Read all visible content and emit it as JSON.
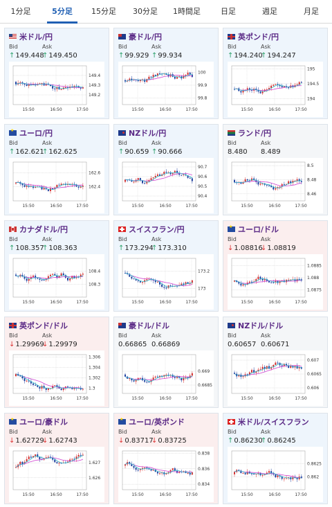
{
  "tabs": [
    {
      "label": "1分足",
      "active": false
    },
    {
      "label": "5分足",
      "active": true
    },
    {
      "label": "15分足",
      "active": false
    },
    {
      "label": "30分足",
      "active": false
    },
    {
      "label": "1時間足",
      "active": false
    },
    {
      "label": "日足",
      "active": false
    },
    {
      "label": "週足",
      "active": false
    },
    {
      "label": "月足",
      "active": false
    }
  ],
  "colors": {
    "up_arrow": "#2aa06a",
    "down_arrow": "#d33333",
    "candle_up": "#d32f2f",
    "candle_down": "#1f3f9f",
    "ma_pink": "#d040d0",
    "ma_cyan": "#2fb8c8",
    "pair_name": "#5b2a86",
    "accent": "#1f5fb3"
  },
  "cards": [
    {
      "pair": "米ドル/円",
      "flag": "us",
      "tone": "up",
      "bid_label": "Bid",
      "ask_label": "Ask",
      "bid": "149.448",
      "ask": "149.450",
      "direction": "up",
      "chart": {
        "x_ticks": [
          "15:50",
          "16:50",
          "17:50"
        ],
        "y_ticks": [
          "149.4",
          "149.3",
          "149.2"
        ],
        "y_range": [
          149.1,
          149.5
        ]
      }
    },
    {
      "pair": "豪ドル/円",
      "flag": "au",
      "tone": "up",
      "bid_label": "Bid",
      "ask_label": "Ask",
      "bid": "99.929",
      "ask": "99.934",
      "direction": "up",
      "chart": {
        "x_ticks": [
          "15:50",
          "16:50",
          "17:50"
        ],
        "y_ticks": [
          "100",
          "99.9",
          "99.8"
        ],
        "y_range": [
          99.75,
          100.05
        ]
      }
    },
    {
      "pair": "英ポンド/円",
      "flag": "gb",
      "tone": "up",
      "bid_label": "Bid",
      "ask_label": "Ask",
      "bid": "194.240",
      "ask": "194.247",
      "direction": "up",
      "chart": {
        "x_ticks": [
          "15:50",
          "16:50",
          "17:50"
        ],
        "y_ticks": [
          "195",
          "194.5",
          "194"
        ],
        "y_range": [
          193.8,
          195.1
        ]
      }
    },
    {
      "pair": "ユーロ/円",
      "flag": "eu",
      "tone": "up",
      "bid_label": "Bid",
      "ask_label": "Ask",
      "bid": "162.621",
      "ask": "162.625",
      "direction": "up",
      "chart": {
        "x_ticks": [
          "15:50",
          "16:50",
          "17:50"
        ],
        "y_ticks": [
          "162.6",
          "162.4"
        ],
        "y_range": [
          162.2,
          162.75
        ]
      }
    },
    {
      "pair": "NZドル/円",
      "flag": "nz",
      "tone": "up",
      "bid_label": "Bid",
      "ask_label": "Ask",
      "bid": "90.659",
      "ask": "90.666",
      "direction": "up",
      "chart": {
        "x_ticks": [
          "15:50",
          "16:50",
          "17:50"
        ],
        "y_ticks": [
          "90.7",
          "90.6",
          "90.5",
          "90.4"
        ],
        "y_range": [
          90.35,
          90.75
        ]
      }
    },
    {
      "pair": "ランド/円",
      "flag": "za",
      "tone": "neutral",
      "bid_label": "Bid",
      "ask_label": "Ask",
      "bid": "8.480",
      "ask": "8.489",
      "direction": "none",
      "chart": {
        "x_ticks": [
          "15:50",
          "16:50",
          "17:50"
        ],
        "y_ticks": [
          "8.5",
          "8.48",
          "8.46"
        ],
        "y_range": [
          8.45,
          8.505
        ]
      }
    },
    {
      "pair": "カナダドル/円",
      "flag": "ca",
      "tone": "up",
      "bid_label": "Bid",
      "ask_label": "Ask",
      "bid": "108.357",
      "ask": "108.363",
      "direction": "up",
      "chart": {
        "x_ticks": [
          "15:50",
          "16:50",
          "17:50"
        ],
        "y_ticks": [
          "108.4",
          "108.3"
        ],
        "y_range": [
          108.2,
          108.5
        ]
      }
    },
    {
      "pair": "スイスフラン/円",
      "flag": "ch",
      "tone": "up",
      "bid_label": "Bid",
      "ask_label": "Ask",
      "bid": "173.294",
      "ask": "173.310",
      "direction": "up",
      "chart": {
        "x_ticks": [
          "15:50",
          "16:50",
          "17:50"
        ],
        "y_ticks": [
          "173.2",
          "173"
        ],
        "y_range": [
          172.9,
          173.35
        ]
      }
    },
    {
      "pair": "ユーロ/ドル",
      "flag": "eu",
      "tone": "down",
      "bid_label": "Bid",
      "ask_label": "Ask",
      "bid": "1.08816",
      "ask": "1.08819",
      "direction": "down",
      "chart": {
        "x_ticks": [
          "15:50",
          "16:50",
          "17:50"
        ],
        "y_ticks": [
          "1.0885",
          "1.088",
          "1.0875"
        ],
        "y_range": [
          1.0872,
          1.0888
        ]
      }
    },
    {
      "pair": "英ポンド/ドル",
      "flag": "gb",
      "tone": "down",
      "bid_label": "Bid",
      "ask_label": "Ask",
      "bid": "1.29969",
      "ask": "1.29979",
      "direction": "down",
      "chart": {
        "x_ticks": [
          "15:50",
          "16:50",
          "17:50"
        ],
        "y_ticks": [
          "1.306",
          "1.304",
          "1.302",
          "1.3"
        ],
        "y_range": [
          1.299,
          1.3065
        ]
      }
    },
    {
      "pair": "豪ドル/ドル",
      "flag": "au",
      "tone": "neutral",
      "bid_label": "Bid",
      "ask_label": "Ask",
      "bid": "0.66865",
      "ask": "0.66869",
      "direction": "none",
      "chart": {
        "x_ticks": [
          "15:50",
          "16:50",
          "17:50"
        ],
        "y_ticks": [
          "0.669",
          "0.6685"
        ],
        "y_range": [
          0.6682,
          0.6696
        ]
      }
    },
    {
      "pair": "NZドル/ドル",
      "flag": "nz",
      "tone": "neutral",
      "bid_label": "Bid",
      "ask_label": "Ask",
      "bid": "0.60657",
      "ask": "0.60671",
      "direction": "none",
      "chart": {
        "x_ticks": [
          "15:50",
          "16:50",
          "17:50"
        ],
        "y_ticks": [
          "0.607",
          "0.6065",
          "0.606"
        ],
        "y_range": [
          0.6058,
          0.6072
        ]
      }
    },
    {
      "pair": "ユーロ/豪ドル",
      "flag": "eu",
      "tone": "down",
      "bid_label": "Bid",
      "ask_label": "Ask",
      "bid": "1.62729",
      "ask": "1.62743",
      "direction": "down",
      "chart": {
        "x_ticks": [
          "15:50",
          "16:50",
          "17:50"
        ],
        "y_ticks": [
          "1.627",
          "1.626"
        ],
        "y_range": [
          1.6252,
          1.6278
        ]
      }
    },
    {
      "pair": "ユーロ/英ポンド",
      "flag": "eu",
      "tone": "down",
      "bid_label": "Bid",
      "ask_label": "Ask",
      "bid": "0.83717",
      "ask": "0.83725",
      "direction": "down",
      "chart": {
        "x_ticks": [
          "15:50",
          "16:50",
          "17:50"
        ],
        "y_ticks": [
          "0.838",
          "0.836",
          "0.834"
        ],
        "y_range": [
          0.8333,
          0.8383
        ]
      }
    },
    {
      "pair": "米ドル/スイスフラン",
      "flag": "ch",
      "tone": "up",
      "bid_label": "Bid",
      "ask_label": "Ask",
      "bid": "0.86230",
      "ask": "0.86245",
      "direction": "up",
      "chart": {
        "x_ticks": [
          "15:50",
          "16:50",
          "17:50"
        ],
        "y_ticks": [
          "0.8625",
          "0.862"
        ],
        "y_range": [
          0.8615,
          0.863
        ]
      }
    }
  ]
}
